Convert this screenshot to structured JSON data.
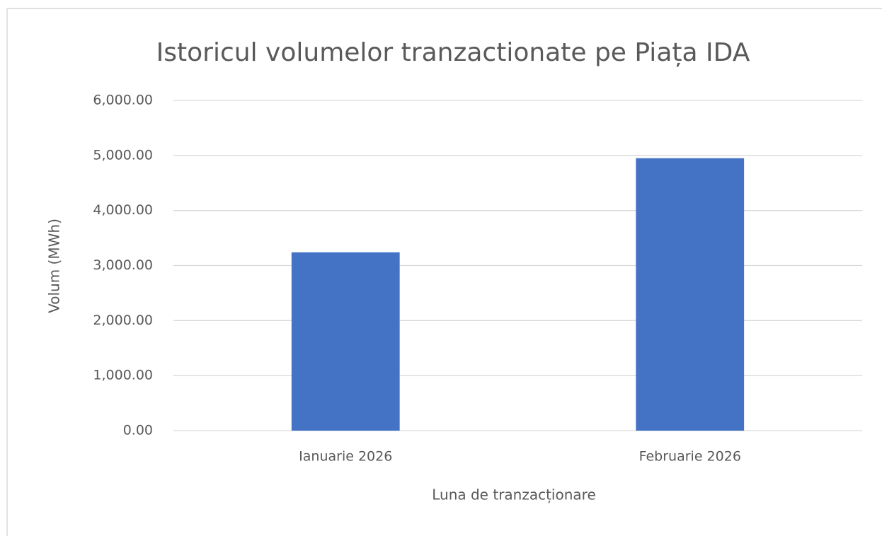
{
  "chart_data": {
    "type": "bar",
    "title": "Istoricul volumelor tranzactionate pe Piața IDA",
    "y_label": "Volum (MWh)",
    "x_label": "Luna de tranzacționare",
    "categories": [
      "Ianuarie 2026",
      "Februarie 2026"
    ],
    "values": [
      3240,
      4950
    ],
    "color": "#4472c4",
    "ylim": [
      0,
      6000
    ],
    "yticks": [
      {
        "value": 0,
        "label": "0.00"
      },
      {
        "value": 1000,
        "label": "1,000.00"
      },
      {
        "value": 2000,
        "label": "2,000.00"
      },
      {
        "value": 3000,
        "label": "3,000.00"
      },
      {
        "value": 4000,
        "label": "4,000.00"
      },
      {
        "value": 5000,
        "label": "5,000.00"
      },
      {
        "value": 6000,
        "label": "6,000.00"
      }
    ],
    "grid": true
  }
}
